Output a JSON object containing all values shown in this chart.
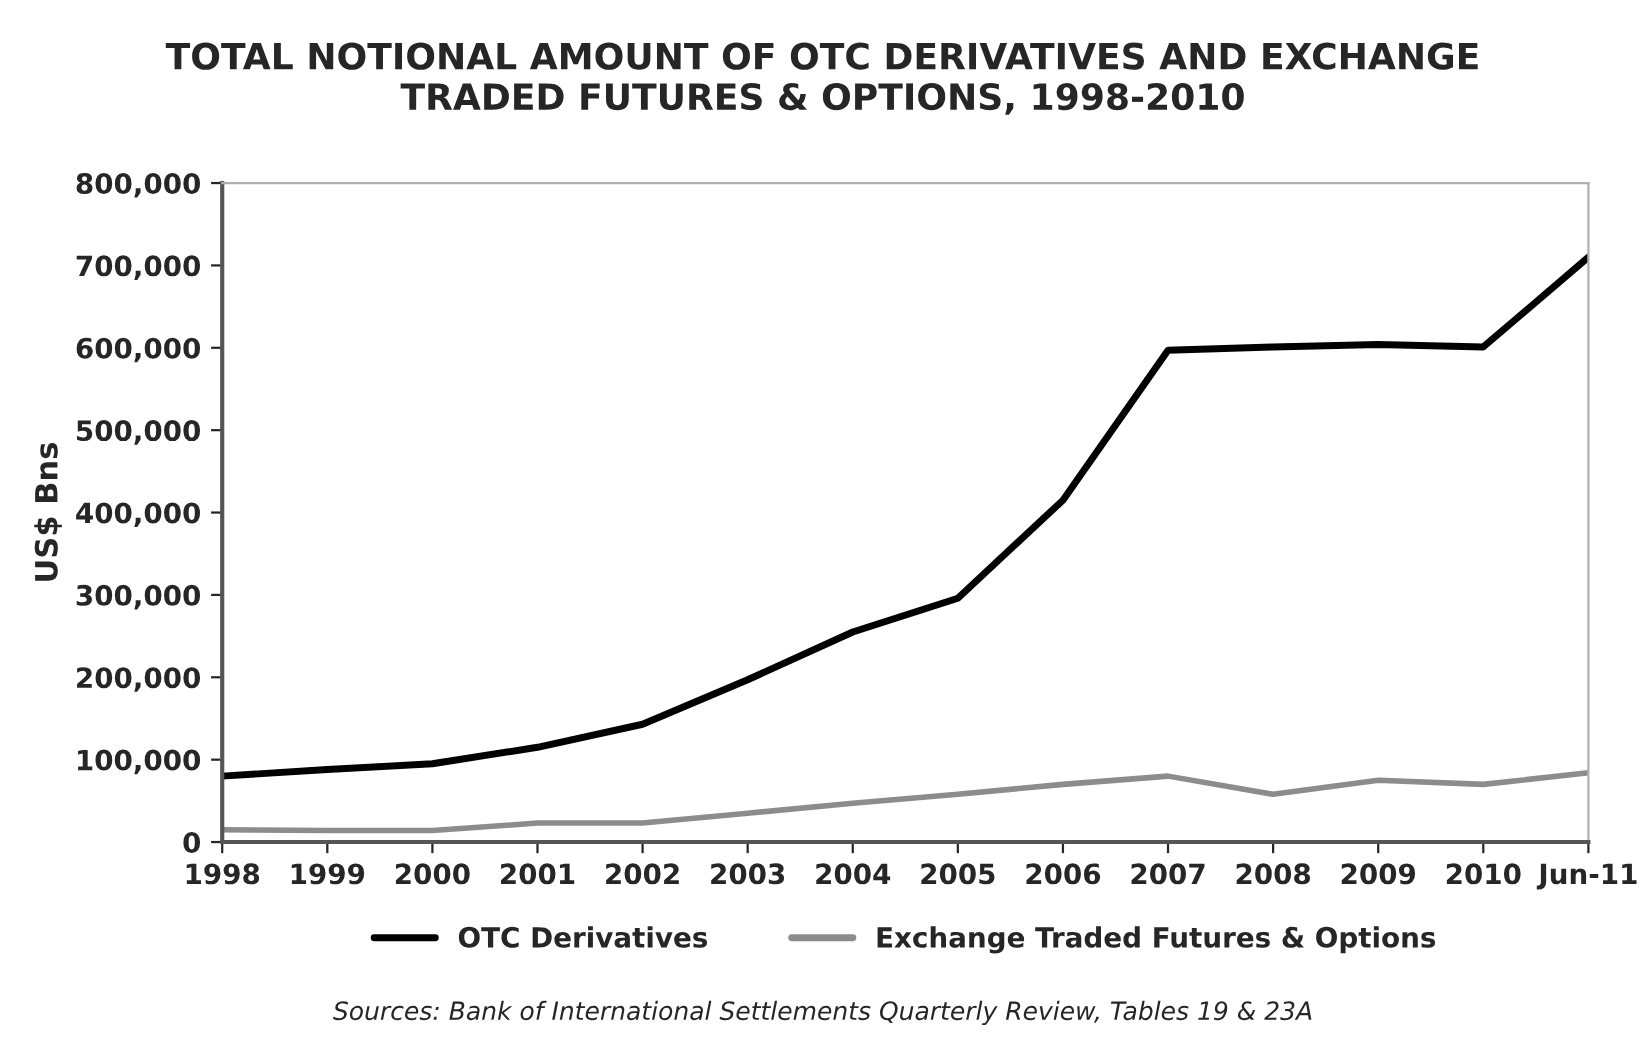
{
  "chart_data": {
    "type": "line",
    "title": "TOTAL NOTIONAL AMOUNT OF OTC DERIVATIVES AND EXCHANGE\nTRADED FUTURES & OPTIONS, 1998-2010",
    "ylabel": "US$ Bns",
    "categories": [
      "1998",
      "1999",
      "2000",
      "2001",
      "2002",
      "2003",
      "2004",
      "2005",
      "2006",
      "2007",
      "2008",
      "2009",
      "2010",
      "Jun-11"
    ],
    "series": [
      {
        "name": "OTC Derivatives",
        "color": "#000000",
        "values": [
          80000,
          88000,
          95000,
          115000,
          143000,
          197000,
          255000,
          296000,
          415000,
          597000,
          601000,
          604000,
          601000,
          710000
        ]
      },
      {
        "name": "Exchange Traded Futures & Options",
        "color": "#8c8c8c",
        "values": [
          15000,
          14000,
          14000,
          23000,
          23000,
          35000,
          47000,
          58000,
          70000,
          80000,
          58000,
          75000,
          70000,
          84000
        ]
      }
    ],
    "ylim": [
      0,
      800000
    ],
    "yticks": [
      {
        "value": 0,
        "label": "0"
      },
      {
        "value": 100000,
        "label": "100,000"
      },
      {
        "value": 200000,
        "label": "200,000"
      },
      {
        "value": 300000,
        "label": "300,000"
      },
      {
        "value": 400000,
        "label": "400,000"
      },
      {
        "value": 500000,
        "label": "500,000"
      },
      {
        "value": 600000,
        "label": "600,000"
      },
      {
        "value": 700000,
        "label": "700,000"
      },
      {
        "value": 800000,
        "label": "800,000"
      }
    ],
    "grid": false,
    "legend": "bottom",
    "line_style": "solid",
    "annotations": [
      "Sources: Bank of International Settlements Quarterly Review, Tables 19 & 23A"
    ]
  }
}
